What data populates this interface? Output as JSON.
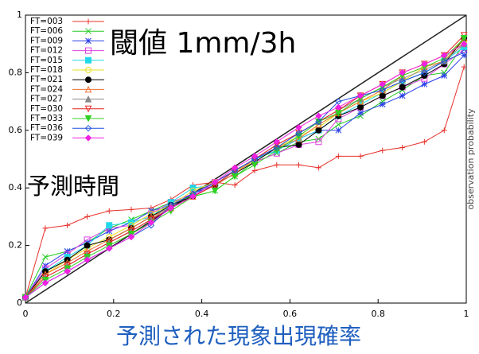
{
  "chart_data": {
    "type": "line",
    "x_label": "予測された現象出現確率",
    "y_label": "observation probability",
    "annotations": [
      "閾値 1mm/3h",
      "予測時間"
    ],
    "x": [
      0,
      0.045,
      0.095,
      0.14,
      0.19,
      0.24,
      0.285,
      0.33,
      0.38,
      0.43,
      0.475,
      0.52,
      0.57,
      0.62,
      0.665,
      0.71,
      0.76,
      0.81,
      0.855,
      0.905,
      0.95,
      0.995
    ],
    "xlim": [
      0,
      1
    ],
    "ylim": [
      0,
      1
    ],
    "xticks": [
      0,
      0.2,
      0.4,
      0.6,
      0.8,
      1
    ],
    "yticks": [
      0,
      0.2,
      0.4,
      0.6,
      0.8,
      1
    ],
    "legend": "upper left",
    "series": [
      {
        "name": "FT=003",
        "color": "#e8302a",
        "marker": "plus",
        "values": [
          0.02,
          0.26,
          0.27,
          0.3,
          0.32,
          0.325,
          0.33,
          0.36,
          0.41,
          0.42,
          0.41,
          0.46,
          0.48,
          0.48,
          0.47,
          0.51,
          0.51,
          0.53,
          0.54,
          0.56,
          0.6,
          0.82
        ]
      },
      {
        "name": "FT=006",
        "color": "#22cc22",
        "marker": "cross",
        "values": [
          0.02,
          0.16,
          0.18,
          0.21,
          0.26,
          0.29,
          0.32,
          0.35,
          0.37,
          0.39,
          0.44,
          0.49,
          0.52,
          0.56,
          0.57,
          0.62,
          0.65,
          0.7,
          0.74,
          0.79,
          0.8,
          0.9
        ]
      },
      {
        "name": "FT=009",
        "color": "#2a3ee8",
        "marker": "star",
        "values": [
          0.02,
          0.13,
          0.18,
          0.21,
          0.25,
          0.28,
          0.32,
          0.34,
          0.38,
          0.41,
          0.46,
          0.5,
          0.53,
          0.57,
          0.6,
          0.6,
          0.66,
          0.69,
          0.72,
          0.76,
          0.79,
          0.86
        ]
      },
      {
        "name": "FT=012",
        "color": "#e040e0",
        "marker": "square-open",
        "values": [
          0.02,
          0.12,
          0.17,
          0.22,
          0.26,
          0.27,
          0.31,
          0.35,
          0.38,
          0.42,
          0.46,
          0.49,
          0.52,
          0.55,
          0.56,
          0.64,
          0.68,
          0.72,
          0.75,
          0.78,
          0.83,
          0.88
        ]
      },
      {
        "name": "FT=015",
        "color": "#22d8e8",
        "marker": "square",
        "values": [
          0.02,
          0.11,
          0.16,
          0.2,
          0.27,
          0.28,
          0.3,
          0.35,
          0.4,
          0.41,
          0.45,
          0.5,
          0.53,
          0.57,
          0.6,
          0.65,
          0.69,
          0.73,
          0.77,
          0.8,
          0.84,
          0.89
        ]
      },
      {
        "name": "FT=018",
        "color": "#e8e020",
        "marker": "circle-open",
        "values": [
          0.02,
          0.1,
          0.15,
          0.19,
          0.23,
          0.27,
          0.31,
          0.34,
          0.39,
          0.42,
          0.46,
          0.49,
          0.54,
          0.58,
          0.61,
          0.66,
          0.7,
          0.73,
          0.77,
          0.82,
          0.84,
          0.91
        ]
      },
      {
        "name": "FT=021",
        "color": "#000000",
        "marker": "circle",
        "values": [
          0.02,
          0.11,
          0.15,
          0.2,
          0.22,
          0.26,
          0.3,
          0.34,
          0.37,
          0.41,
          0.45,
          0.49,
          0.54,
          0.55,
          0.6,
          0.65,
          0.68,
          0.72,
          0.75,
          0.79,
          0.83,
          0.92
        ]
      },
      {
        "name": "FT=024",
        "color": "#f07030",
        "marker": "triangle-open",
        "values": [
          0.02,
          0.1,
          0.14,
          0.18,
          0.22,
          0.26,
          0.3,
          0.33,
          0.37,
          0.41,
          0.45,
          0.5,
          0.54,
          0.57,
          0.62,
          0.66,
          0.7,
          0.74,
          0.79,
          0.82,
          0.84,
          0.92
        ]
      },
      {
        "name": "FT=027",
        "color": "#888888",
        "marker": "triangle",
        "values": [
          0.02,
          0.09,
          0.13,
          0.17,
          0.21,
          0.25,
          0.29,
          0.34,
          0.38,
          0.42,
          0.46,
          0.5,
          0.55,
          0.59,
          0.63,
          0.67,
          0.71,
          0.75,
          0.78,
          0.81,
          0.84,
          0.9
        ]
      },
      {
        "name": "FT=030",
        "color": "#e82020",
        "marker": "triangle-down-open",
        "values": [
          0.02,
          0.09,
          0.13,
          0.17,
          0.21,
          0.25,
          0.29,
          0.33,
          0.37,
          0.41,
          0.46,
          0.5,
          0.55,
          0.59,
          0.63,
          0.67,
          0.72,
          0.76,
          0.8,
          0.83,
          0.86,
          0.93
        ]
      },
      {
        "name": "FT=033",
        "color": "#30d020",
        "marker": "triangle-down",
        "values": [
          0.02,
          0.08,
          0.12,
          0.16,
          0.2,
          0.24,
          0.28,
          0.32,
          0.37,
          0.39,
          0.44,
          0.48,
          0.53,
          0.58,
          0.63,
          0.66,
          0.71,
          0.75,
          0.79,
          0.82,
          0.85,
          0.92
        ]
      },
      {
        "name": "FT=036",
        "color": "#2050e0",
        "marker": "diamond-open",
        "values": [
          0.02,
          0.07,
          0.11,
          0.15,
          0.19,
          0.23,
          0.27,
          0.34,
          0.38,
          0.42,
          0.46,
          0.5,
          0.54,
          0.59,
          0.63,
          0.7,
          0.72,
          0.74,
          0.77,
          0.8,
          0.84,
          0.87
        ]
      },
      {
        "name": "FT=039",
        "color": "#f020e0",
        "marker": "diamond",
        "values": [
          0.02,
          0.07,
          0.11,
          0.15,
          0.19,
          0.23,
          0.28,
          0.33,
          0.37,
          0.42,
          0.47,
          0.51,
          0.56,
          0.61,
          0.65,
          0.68,
          0.72,
          0.76,
          0.8,
          0.83,
          0.86,
          0.9
        ]
      }
    ]
  }
}
